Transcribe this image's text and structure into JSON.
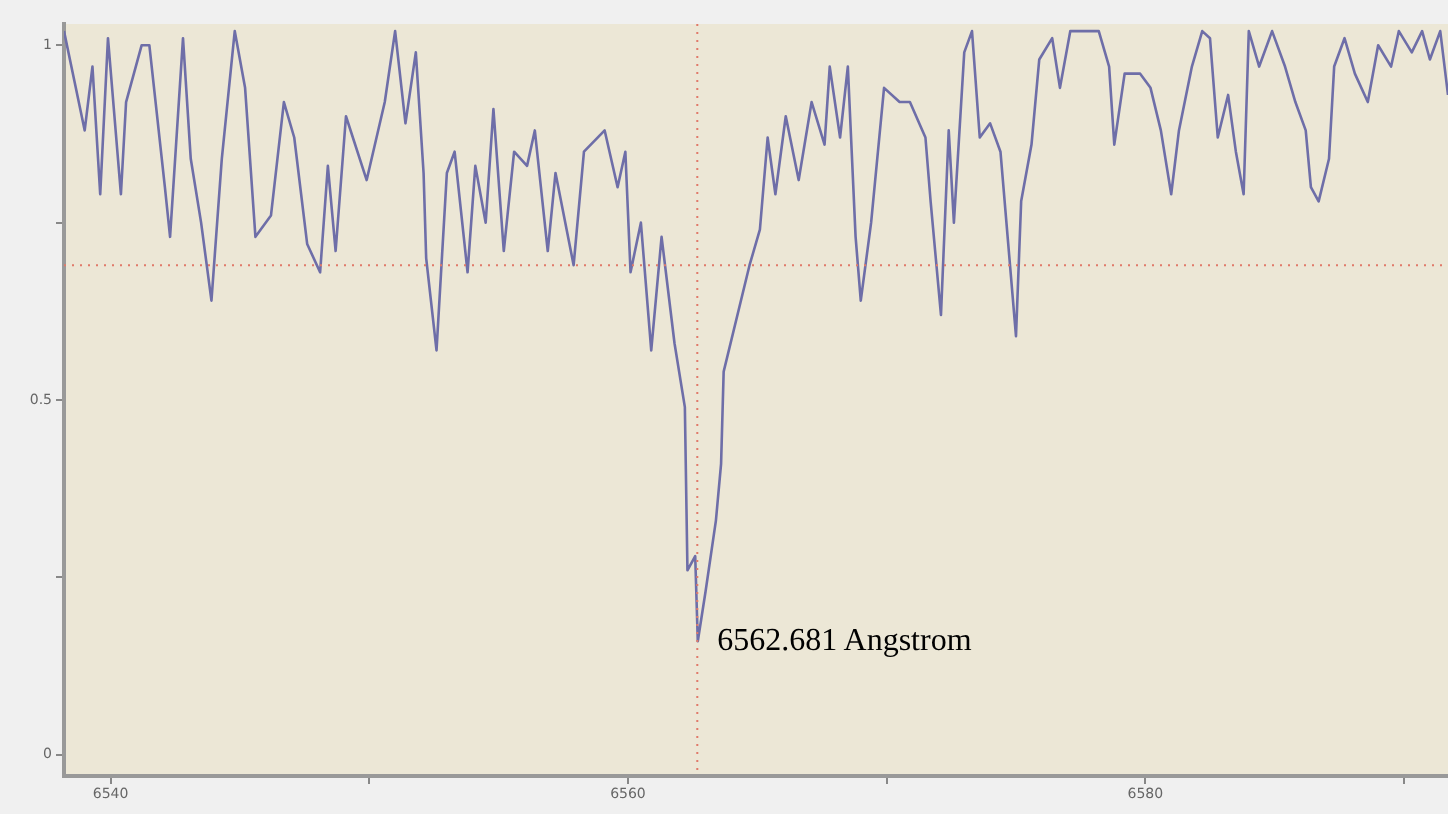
{
  "chart_data": {
    "type": "line",
    "x": [
      6538.2,
      6538.6,
      6539.0,
      6539.3,
      6539.6,
      6539.9,
      6540.4,
      6540.6,
      6541.2,
      6541.5,
      6542.1,
      6542.3,
      6542.8,
      6543.1,
      6543.5,
      6543.9,
      6544.3,
      6544.8,
      6545.2,
      6545.6,
      6546.2,
      6546.7,
      6547.1,
      6547.6,
      6548.1,
      6548.4,
      6548.7,
      6549.1,
      6549.9,
      6550.6,
      6551.0,
      6551.4,
      6551.8,
      6552.1,
      6552.2,
      6552.6,
      6553.0,
      6553.3,
      6553.8,
      6554.1,
      6554.5,
      6554.8,
      6555.2,
      6555.6,
      6556.1,
      6556.4,
      6556.9,
      6557.2,
      6557.9,
      6558.3,
      6559.1,
      6559.6,
      6559.9,
      6560.1,
      6560.5,
      6560.9,
      6561.3,
      6561.8,
      6562.2,
      6562.3,
      6562.6,
      6562.7,
      6563.0,
      6563.4,
      6563.6,
      6563.7,
      6564.7,
      6565.1,
      6565.4,
      6565.7,
      6566.1,
      6566.6,
      6567.1,
      6567.6,
      6567.8,
      6568.2,
      6568.5,
      6568.8,
      6569.0,
      6569.4,
      6569.9,
      6570.5,
      6570.9,
      6571.5,
      6571.7,
      6572.1,
      6572.4,
      6572.6,
      6573.0,
      6573.3,
      6573.6,
      6574.0,
      6574.4,
      6574.7,
      6575.0,
      6575.2,
      6575.6,
      6575.9,
      6576.4,
      6576.7,
      6577.1,
      6577.8,
      6578.2,
      6578.6,
      6578.8,
      6579.2,
      6579.8,
      6580.2,
      6580.6,
      6581.0,
      6581.3,
      6581.8,
      6582.2,
      6582.5,
      6582.8,
      6583.2,
      6583.5,
      6583.8,
      6584.0,
      6584.4,
      6584.9,
      6585.4,
      6585.8,
      6586.2,
      6586.4,
      6586.7,
      6587.1,
      6587.3,
      6587.7,
      6588.1,
      6588.6,
      6589.0,
      6589.5,
      6589.8,
      6590.3,
      6590.7,
      6591.0,
      6591.4,
      6591.7
    ],
    "series": [
      {
        "color": "#6e6ea8",
        "values": [
          1.02,
          0.95,
          0.88,
          0.97,
          0.79,
          1.01,
          0.79,
          0.92,
          1.0,
          1.0,
          0.8,
          0.73,
          1.01,
          0.84,
          0.75,
          0.64,
          0.84,
          1.02,
          0.94,
          0.73,
          0.76,
          0.92,
          0.87,
          0.72,
          0.68,
          0.83,
          0.71,
          0.9,
          0.81,
          0.92,
          1.02,
          0.89,
          0.99,
          0.82,
          0.7,
          0.57,
          0.82,
          0.85,
          0.68,
          0.83,
          0.75,
          0.91,
          0.71,
          0.85,
          0.83,
          0.88,
          0.71,
          0.82,
          0.69,
          0.85,
          0.88,
          0.8,
          0.85,
          0.68,
          0.75,
          0.57,
          0.73,
          0.58,
          0.49,
          0.26,
          0.28,
          0.16,
          0.23,
          0.33,
          0.41,
          0.54,
          0.69,
          0.74,
          0.87,
          0.79,
          0.9,
          0.81,
          0.92,
          0.86,
          0.97,
          0.87,
          0.97,
          0.73,
          0.64,
          0.75,
          0.94,
          0.92,
          0.92,
          0.87,
          0.78,
          0.62,
          0.88,
          0.75,
          0.99,
          1.02,
          0.87,
          0.89,
          0.85,
          0.72,
          0.59,
          0.78,
          0.86,
          0.98,
          1.01,
          0.94,
          1.02,
          1.02,
          1.02,
          0.97,
          0.86,
          0.96,
          0.96,
          0.94,
          0.88,
          0.79,
          0.88,
          0.97,
          1.02,
          1.01,
          0.87,
          0.93,
          0.85,
          0.79,
          1.02,
          0.97,
          1.02,
          0.97,
          0.92,
          0.88,
          0.8,
          0.78,
          0.84,
          0.97,
          1.01,
          0.96,
          0.92,
          1.0,
          0.97,
          1.02,
          0.99,
          1.02,
          0.98,
          1.02,
          0.93
        ]
      }
    ],
    "xlim": [
      6538.2,
      6591.7
    ],
    "xticks": [
      6540,
      {
        "value": 6550,
        "label": null
      },
      6560,
      {
        "value": 6570,
        "label": null
      },
      6580,
      {
        "value": 6590,
        "label": null
      }
    ],
    "ylim": [
      -0.03,
      1.03
    ],
    "yticks": [
      0,
      {
        "value": 0.25,
        "label": null
      },
      0.5,
      {
        "value": 0.75,
        "label": null
      },
      1
    ],
    "ref_lines": [
      {
        "axis": "x",
        "value": 6562.681,
        "color": "#e07a6a",
        "line_style": "dotted"
      },
      {
        "axis": "y",
        "value": 0.69,
        "color": "#e07a6a",
        "line_style": "dotted"
      }
    ],
    "annotations": [
      {
        "text": "6562.681 Angstrom",
        "x": 6562.681,
        "y": 0.16
      }
    ],
    "grid": false,
    "legend": false,
    "marker": "none",
    "line_style": "solid"
  }
}
